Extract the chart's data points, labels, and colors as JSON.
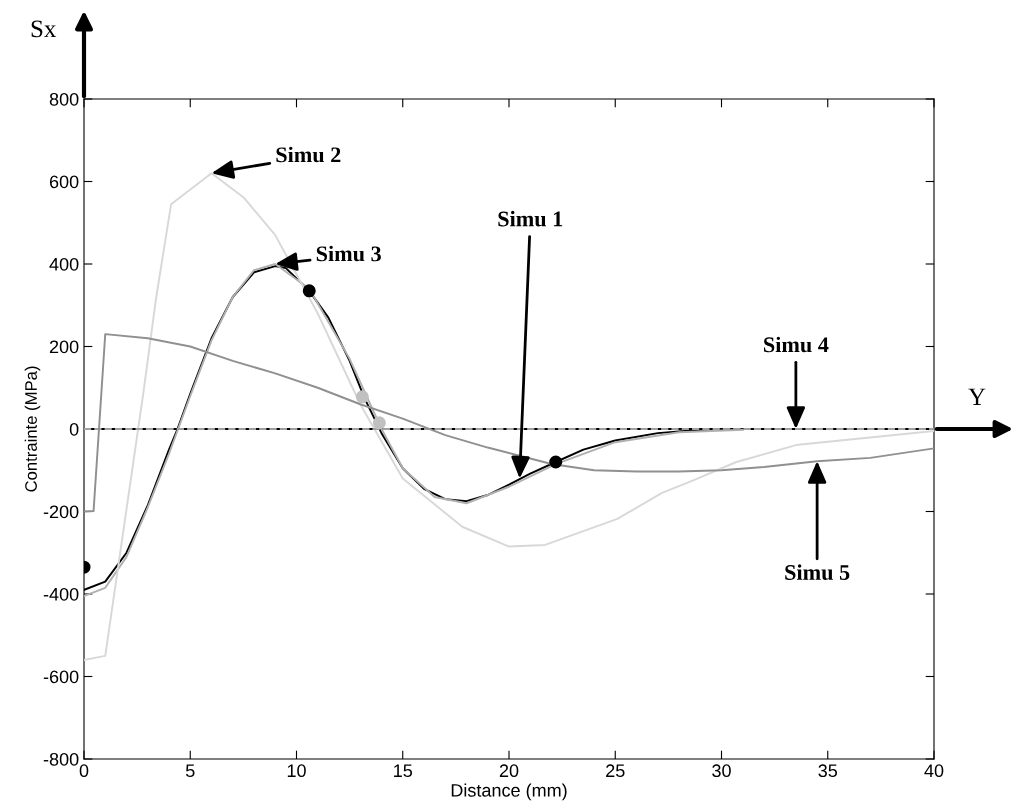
{
  "chart_data": {
    "type": "line",
    "xlabel": "Distance (mm)",
    "ylabel": "Contrainte (MPa)",
    "xlim": [
      0,
      40
    ],
    "xticks": [
      0,
      5,
      10,
      15,
      20,
      25,
      30,
      35,
      40
    ],
    "ylim": [
      -800,
      800
    ],
    "yticks": [
      -800,
      -600,
      -400,
      -200,
      0,
      200,
      400,
      600,
      800
    ],
    "grid": false,
    "legend": false,
    "ref_lines": [
      {
        "axis": "y",
        "value": 0,
        "color": "#000000"
      }
    ],
    "series": [
      {
        "color": "#000000",
        "x": [
          0,
          1,
          2,
          3,
          4,
          4.4,
          5,
          6,
          7,
          8,
          9,
          9.5,
          10.6,
          11.5,
          12.5,
          13.2,
          14,
          15,
          16,
          17,
          18,
          19,
          20,
          21,
          22.2,
          23.5,
          25,
          27,
          29,
          31
        ],
        "values": [
          -390,
          -370,
          -300,
          -185,
          -50,
          0,
          85,
          220,
          320,
          380,
          395,
          390,
          335,
          270,
          165,
          75,
          -10,
          -95,
          -145,
          -170,
          -175,
          -160,
          -135,
          -108,
          -80,
          -50,
          -28,
          -10,
          -2,
          0
        ]
      },
      {
        "color": "#b0b0b0",
        "x": [
          0,
          1,
          2,
          3,
          4,
          5,
          6,
          7,
          8,
          9,
          10.6,
          12.5,
          14,
          15,
          16.5,
          18,
          20,
          22.2,
          25,
          28,
          31
        ],
        "values": [
          -405,
          -385,
          -310,
          -190,
          -60,
          80,
          215,
          320,
          385,
          400,
          340,
          170,
          0,
          -95,
          -165,
          -180,
          -140,
          -85,
          -32,
          -8,
          -2
        ]
      },
      {
        "color": "#d8d8d8",
        "x": [
          0,
          1,
          2.8,
          3.4,
          4.1,
          6,
          7.5,
          9,
          11,
          13,
          15,
          17.8,
          20,
          21.7,
          25.1,
          27.2,
          28.5,
          30.7,
          33.5,
          40
        ],
        "values": [
          -560,
          -550,
          90,
          320,
          545,
          620,
          562,
          470,
          280,
          60,
          -120,
          -237,
          -285,
          -281,
          -218,
          -155,
          -128,
          -80,
          -39,
          -5
        ]
      },
      {
        "color": "#a0a0a0",
        "line_style": "dashed",
        "x": [
          0,
          10,
          20,
          30,
          40
        ],
        "values": [
          0,
          0,
          0,
          0,
          0
        ]
      },
      {
        "color": "#909090",
        "x": [
          0,
          0.45,
          1,
          3,
          5,
          7,
          9,
          11,
          13,
          15,
          17,
          19,
          20.5,
          22,
          24,
          26,
          28,
          30,
          32,
          34.5,
          37,
          40
        ],
        "values": [
          -200,
          -199,
          230,
          220,
          200,
          165,
          135,
          100,
          60,
          25,
          -15,
          -45,
          -65,
          -85,
          -100,
          -103,
          -103,
          -100,
          -92,
          -78,
          -70,
          -47
        ]
      },
      {
        "type": "scatter",
        "marker": "circle",
        "color": "#000000",
        "x": [
          0,
          10.6,
          22.2
        ],
        "values": [
          -335,
          335,
          -80
        ]
      },
      {
        "type": "scatter",
        "marker": "circle",
        "color": "#c0c0c0",
        "x": [
          13.1,
          13.9
        ],
        "values": [
          78,
          15
        ]
      }
    ],
    "annotations": [
      {
        "text": "Simu 2",
        "x": 6,
        "y": 620
      },
      {
        "text": "Simu 3",
        "x": 9,
        "y": 400
      },
      {
        "text": "Simu 1",
        "x": 20.5,
        "y": -120
      },
      {
        "text": "Simu 4",
        "x": 33.5,
        "y": 0
      },
      {
        "text": "Simu 5",
        "x": 34.5,
        "y": -78
      },
      "Sx",
      "Y"
    ]
  }
}
